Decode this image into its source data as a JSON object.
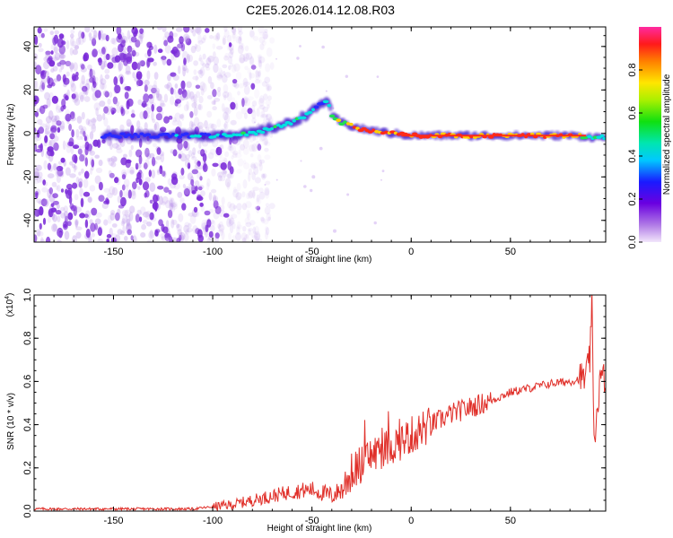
{
  "title": "C2E5.2026.014.12.08.R03",
  "colors": {
    "snr_line": "#e0302a",
    "ridge_hot": "#ff2a1a",
    "ridge_mid": "#00e0e0",
    "ridge_low": "#2a2aff",
    "noise": "#7a2ad8"
  },
  "chart_data": [
    {
      "type": "heatmap",
      "xlabel": "Height of straight line (km)",
      "ylabel": "Frequency (Hz)",
      "xlim": [
        -190,
        98
      ],
      "ylim": [
        -50,
        49
      ],
      "x_ticks": [
        "-150",
        "-100",
        "-50",
        "0",
        "50"
      ],
      "y_ticks": [
        "-40",
        "-20",
        "0",
        "20",
        "40"
      ],
      "colorbar": {
        "label": "Normalized spectral amplitude",
        "range": [
          0.0,
          1.0
        ],
        "ticks": [
          "0.0",
          "0.2",
          "0.4",
          "0.6",
          "0.8"
        ]
      },
      "ridge": {
        "x": [
          -155,
          -120,
          -100,
          -80,
          -60,
          -50,
          -42,
          -40,
          -35,
          -25,
          -10,
          0,
          20,
          50,
          80,
          98
        ],
        "freq": [
          -1,
          -1,
          -1,
          0,
          5,
          10,
          16,
          8,
          5,
          2,
          0,
          -1,
          -1,
          -1,
          -1,
          -2
        ],
        "amplitude": [
          0.3,
          0.35,
          0.45,
          0.5,
          0.5,
          0.5,
          0.45,
          0.6,
          0.75,
          0.9,
          0.95,
          0.95,
          0.9,
          0.9,
          0.85,
          0.4
        ]
      },
      "noise_region_x": [
        -190,
        -90
      ]
    },
    {
      "type": "line",
      "xlabel": "Height of straight line (km)",
      "ylabel": "SNR (10 * v/v)",
      "y_multiplier": "(x10",
      "y_multiplier_exp": "4",
      "y_multiplier_close": ")",
      "xlim": [
        -190,
        98
      ],
      "ylim": [
        0.0,
        1.0
      ],
      "x_ticks": [
        "-150",
        "-100",
        "-50",
        "0",
        "50"
      ],
      "y_ticks": [
        "0.0",
        "0.2",
        "0.4",
        "0.6",
        "0.8",
        "1.0"
      ],
      "series": [
        {
          "x": [
            -190,
            -150,
            -110,
            -100,
            -90,
            -80,
            -70,
            -60,
            -50,
            -40,
            -35,
            -30,
            -25,
            -20,
            -10,
            0,
            10,
            20,
            30,
            40,
            50,
            60,
            70,
            80,
            88,
            90,
            91,
            92,
            95,
            98
          ],
          "y": [
            0.01,
            0.01,
            0.01,
            0.02,
            0.03,
            0.05,
            0.07,
            0.09,
            0.1,
            0.07,
            0.1,
            0.18,
            0.22,
            0.26,
            0.3,
            0.35,
            0.4,
            0.45,
            0.48,
            0.51,
            0.55,
            0.57,
            0.59,
            0.6,
            0.62,
            0.7,
            1.0,
            0.3,
            0.6,
            0.62
          ]
        }
      ]
    }
  ]
}
